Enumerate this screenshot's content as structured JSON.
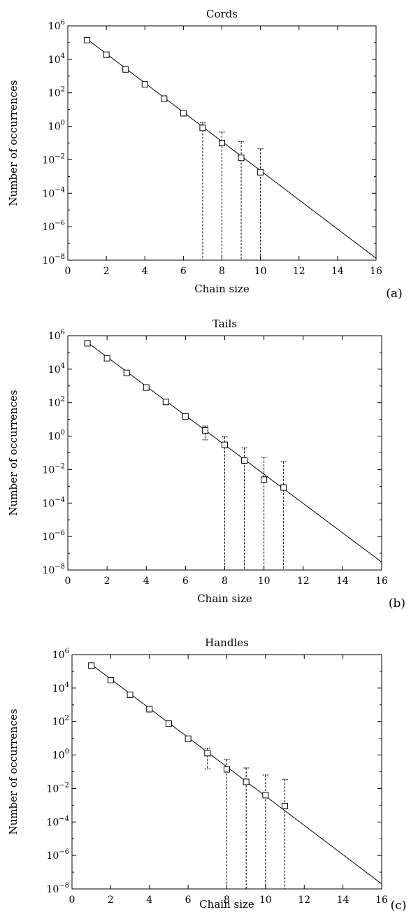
{
  "chart_data": [
    {
      "type": "scatter",
      "panel_label": "(a)",
      "title": "Cords",
      "xlabel": "Chain size",
      "ylabel": "Number of occurrences",
      "xlim": [
        0,
        16
      ],
      "ylim": [
        1e-08,
        1000000.0
      ],
      "yscale": "log",
      "xticks": [
        "0",
        "2",
        "4",
        "6",
        "8",
        "10",
        "12",
        "14",
        "16"
      ],
      "yticks_exp": [
        "−8",
        "−6",
        "−4",
        "−2",
        "0",
        "2",
        "4",
        "6"
      ],
      "grid": false,
      "points": [
        {
          "x": 1,
          "y": 140000,
          "err_low": null,
          "err_high": null
        },
        {
          "x": 2,
          "y": 19000,
          "err_low": null,
          "err_high": null
        },
        {
          "x": 3,
          "y": 2500,
          "err_low": null,
          "err_high": null
        },
        {
          "x": 4,
          "y": 320,
          "err_low": null,
          "err_high": null
        },
        {
          "x": 5,
          "y": 45,
          "err_low": null,
          "err_high": null
        },
        {
          "x": 6,
          "y": 6,
          "err_low": null,
          "err_high": null
        },
        {
          "x": 7,
          "y": 0.8,
          "err_low": 1e-08,
          "err_high": 1.6
        },
        {
          "x": 8,
          "y": 0.1,
          "err_low": 1e-08,
          "err_high": 0.45
        },
        {
          "x": 9,
          "y": 0.013,
          "err_low": 1e-08,
          "err_high": 0.12
        },
        {
          "x": 10,
          "y": 0.0018,
          "err_low": 1e-08,
          "err_high": 0.045
        }
      ],
      "fit_line": {
        "x": [
          1,
          16
        ],
        "y": [
          160000,
          1.3e-08
        ]
      }
    },
    {
      "type": "scatter",
      "panel_label": "(b)",
      "title": "Tails",
      "xlabel": "Chain size",
      "ylabel": "Number of occurrences",
      "xlim": [
        0,
        16
      ],
      "ylim": [
        1e-08,
        1000000.0
      ],
      "yscale": "log",
      "xticks": [
        "0",
        "2",
        "4",
        "6",
        "8",
        "10",
        "12",
        "14",
        "16"
      ],
      "yticks_exp": [
        "−8",
        "−6",
        "−4",
        "−2",
        "0",
        "2",
        "4",
        "6"
      ],
      "grid": false,
      "points": [
        {
          "x": 1,
          "y": 350000,
          "err_low": null,
          "err_high": null
        },
        {
          "x": 2,
          "y": 45000,
          "err_low": null,
          "err_high": null
        },
        {
          "x": 3,
          "y": 6000,
          "err_low": null,
          "err_high": null
        },
        {
          "x": 4,
          "y": 800,
          "err_low": null,
          "err_high": null
        },
        {
          "x": 5,
          "y": 110,
          "err_low": null,
          "err_high": null
        },
        {
          "x": 6,
          "y": 15,
          "err_low": null,
          "err_high": null
        },
        {
          "x": 7,
          "y": 2.2,
          "err_low": 0.6,
          "err_high": 4
        },
        {
          "x": 8,
          "y": 0.3,
          "err_low": 1e-08,
          "err_high": 0.9
        },
        {
          "x": 9,
          "y": 0.035,
          "err_low": 1e-08,
          "err_high": 0.2
        },
        {
          "x": 10,
          "y": 0.0025,
          "err_low": 1e-08,
          "err_high": 0.055
        },
        {
          "x": 11,
          "y": 0.00085,
          "err_low": 1e-08,
          "err_high": 0.03
        }
      ],
      "fit_line": {
        "x": [
          1,
          16
        ],
        "y": [
          400000,
          3e-08
        ]
      }
    },
    {
      "type": "scatter",
      "panel_label": "(c)",
      "title": "Handles",
      "xlabel": "Chain size",
      "ylabel": "Number of occurrences",
      "xlim": [
        0,
        16
      ],
      "ylim": [
        1e-08,
        1000000.0
      ],
      "yscale": "log",
      "xticks": [
        "0",
        "2",
        "4",
        "6",
        "8",
        "10",
        "12",
        "14",
        "16"
      ],
      "yticks_exp": [
        "−8",
        "−6",
        "−4",
        "−2",
        "0",
        "2",
        "4",
        "6"
      ],
      "grid": false,
      "points": [
        {
          "x": 1,
          "y": 220000,
          "err_low": null,
          "err_high": null
        },
        {
          "x": 2,
          "y": 30000,
          "err_low": null,
          "err_high": null
        },
        {
          "x": 3,
          "y": 4000,
          "err_low": null,
          "err_high": null
        },
        {
          "x": 4,
          "y": 550,
          "err_low": null,
          "err_high": null
        },
        {
          "x": 5,
          "y": 75,
          "err_low": null,
          "err_high": null
        },
        {
          "x": 6,
          "y": 9.5,
          "err_low": null,
          "err_high": null
        },
        {
          "x": 7,
          "y": 1.3,
          "err_low": 0.15,
          "err_high": 2.5
        },
        {
          "x": 8,
          "y": 0.14,
          "err_low": 1e-08,
          "err_high": 0.55
        },
        {
          "x": 9,
          "y": 0.025,
          "err_low": 1e-08,
          "err_high": 0.17
        },
        {
          "x": 10,
          "y": 0.004,
          "err_low": 1e-08,
          "err_high": 0.065
        },
        {
          "x": 11,
          "y": 0.0009,
          "err_low": 1e-08,
          "err_high": 0.035
        }
      ],
      "fit_line": {
        "x": [
          1,
          16
        ],
        "y": [
          260000,
          2e-08
        ]
      }
    }
  ]
}
